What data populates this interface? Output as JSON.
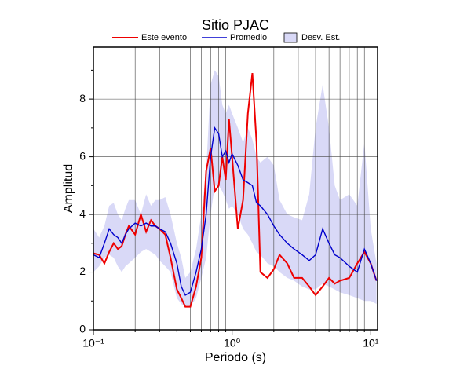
{
  "chart_data": {
    "type": "line",
    "title": "Sitio PJAC",
    "xlabel": "Periodo (s)",
    "ylabel": "Amplitud",
    "xscale": "log",
    "grid": true,
    "xlim": [
      0.1,
      11.2
    ],
    "ylim": [
      0,
      9.8
    ],
    "xticks": [
      {
        "value": 0.1,
        "label": "10⁻¹"
      },
      {
        "value": 1,
        "label": "10⁰"
      },
      {
        "value": 10,
        "label": "10¹"
      }
    ],
    "xgrid": [
      0.2,
      0.3,
      0.4,
      0.5,
      0.6,
      0.7,
      0.8,
      0.9,
      2,
      3,
      4,
      5,
      6,
      7,
      8,
      9
    ],
    "yticks": [
      0,
      2,
      4,
      6,
      8
    ],
    "yminor": [
      1,
      3,
      5,
      7,
      9
    ],
    "x": [
      0.1,
      0.11,
      0.12,
      0.13,
      0.14,
      0.15,
      0.16,
      0.17,
      0.18,
      0.2,
      0.22,
      0.24,
      0.26,
      0.28,
      0.3,
      0.33,
      0.36,
      0.4,
      0.43,
      0.46,
      0.5,
      0.55,
      0.6,
      0.65,
      0.7,
      0.75,
      0.8,
      0.85,
      0.9,
      0.95,
      1.0,
      1.1,
      1.2,
      1.3,
      1.4,
      1.5,
      1.6,
      1.8,
      2.0,
      2.2,
      2.5,
      2.8,
      3.2,
      3.6,
      4.0,
      4.5,
      5,
      5.5,
      6,
      7,
      8,
      9,
      10,
      11
    ],
    "band": {
      "name": "Desv. Est.",
      "color": "#d9d9f7",
      "lower": [
        2.0,
        2.2,
        2.5,
        2.6,
        2.5,
        2.2,
        2.0,
        2.2,
        2.3,
        2.5,
        2.7,
        2.8,
        2.7,
        2.6,
        2.4,
        2.2,
        2.0,
        1.1,
        0.9,
        0.8,
        0.8,
        1.1,
        1.8,
        2.5,
        4.0,
        5.0,
        5.0,
        4.8,
        4.5,
        4.2,
        4.3,
        4.0,
        3.5,
        3.3,
        3.0,
        2.7,
        2.6,
        2.3,
        2.2,
        2.0,
        1.8,
        1.7,
        1.5,
        1.4,
        1.4,
        1.6,
        1.5,
        1.4,
        1.3,
        1.2,
        1.1,
        1.0,
        1.0,
        0.9
      ],
      "upper": [
        3.5,
        3.2,
        3.6,
        4.3,
        4.4,
        4.0,
        3.8,
        4.2,
        4.5,
        4.5,
        4.0,
        4.7,
        4.3,
        4.5,
        4.5,
        4.6,
        4.0,
        3.0,
        2.5,
        1.8,
        2.0,
        2.8,
        4.0,
        5.5,
        8.5,
        9.0,
        8.8,
        7.8,
        7.5,
        7.8,
        7.5,
        7.0,
        6.5,
        7.0,
        6.6,
        6.0,
        5.8,
        6.0,
        5.7,
        4.5,
        4.0,
        3.9,
        3.8,
        4.7,
        7.0,
        8.5,
        7.0,
        5.0,
        4.5,
        4.7,
        4.3,
        6.5,
        3.5,
        2.3
      ]
    },
    "series": [
      {
        "name": "Este evento",
        "color": "#ee0000",
        "values": [
          2.65,
          2.6,
          2.3,
          2.7,
          3.0,
          2.8,
          2.9,
          3.3,
          3.6,
          3.3,
          4.0,
          3.4,
          3.8,
          3.6,
          3.5,
          3.3,
          2.5,
          1.4,
          1.1,
          0.8,
          0.8,
          1.5,
          2.5,
          5.5,
          6.3,
          4.8,
          5.0,
          6.0,
          5.2,
          7.3,
          6.0,
          3.5,
          4.5,
          7.5,
          8.9,
          6.5,
          2.0,
          1.8,
          2.1,
          2.6,
          2.3,
          1.8,
          1.8,
          1.5,
          1.2,
          1.5,
          1.8,
          1.6,
          1.7,
          1.8,
          2.3,
          2.7,
          2.3,
          1.7
        ]
      },
      {
        "name": "Promedio",
        "color": "#0000cc",
        "values": [
          2.6,
          2.5,
          3.0,
          3.5,
          3.3,
          3.2,
          3.0,
          3.3,
          3.5,
          3.7,
          3.6,
          3.7,
          3.6,
          3.6,
          3.5,
          3.4,
          3.0,
          2.3,
          1.5,
          1.2,
          1.3,
          2.0,
          2.8,
          4.0,
          6.0,
          7.0,
          6.8,
          6.0,
          6.2,
          5.8,
          6.1,
          5.7,
          5.2,
          5.1,
          5.0,
          4.4,
          4.3,
          4.0,
          3.6,
          3.3,
          3.0,
          2.8,
          2.6,
          2.4,
          2.6,
          3.5,
          3.0,
          2.6,
          2.5,
          2.2,
          2.0,
          2.8,
          2.3,
          1.7
        ]
      }
    ]
  }
}
